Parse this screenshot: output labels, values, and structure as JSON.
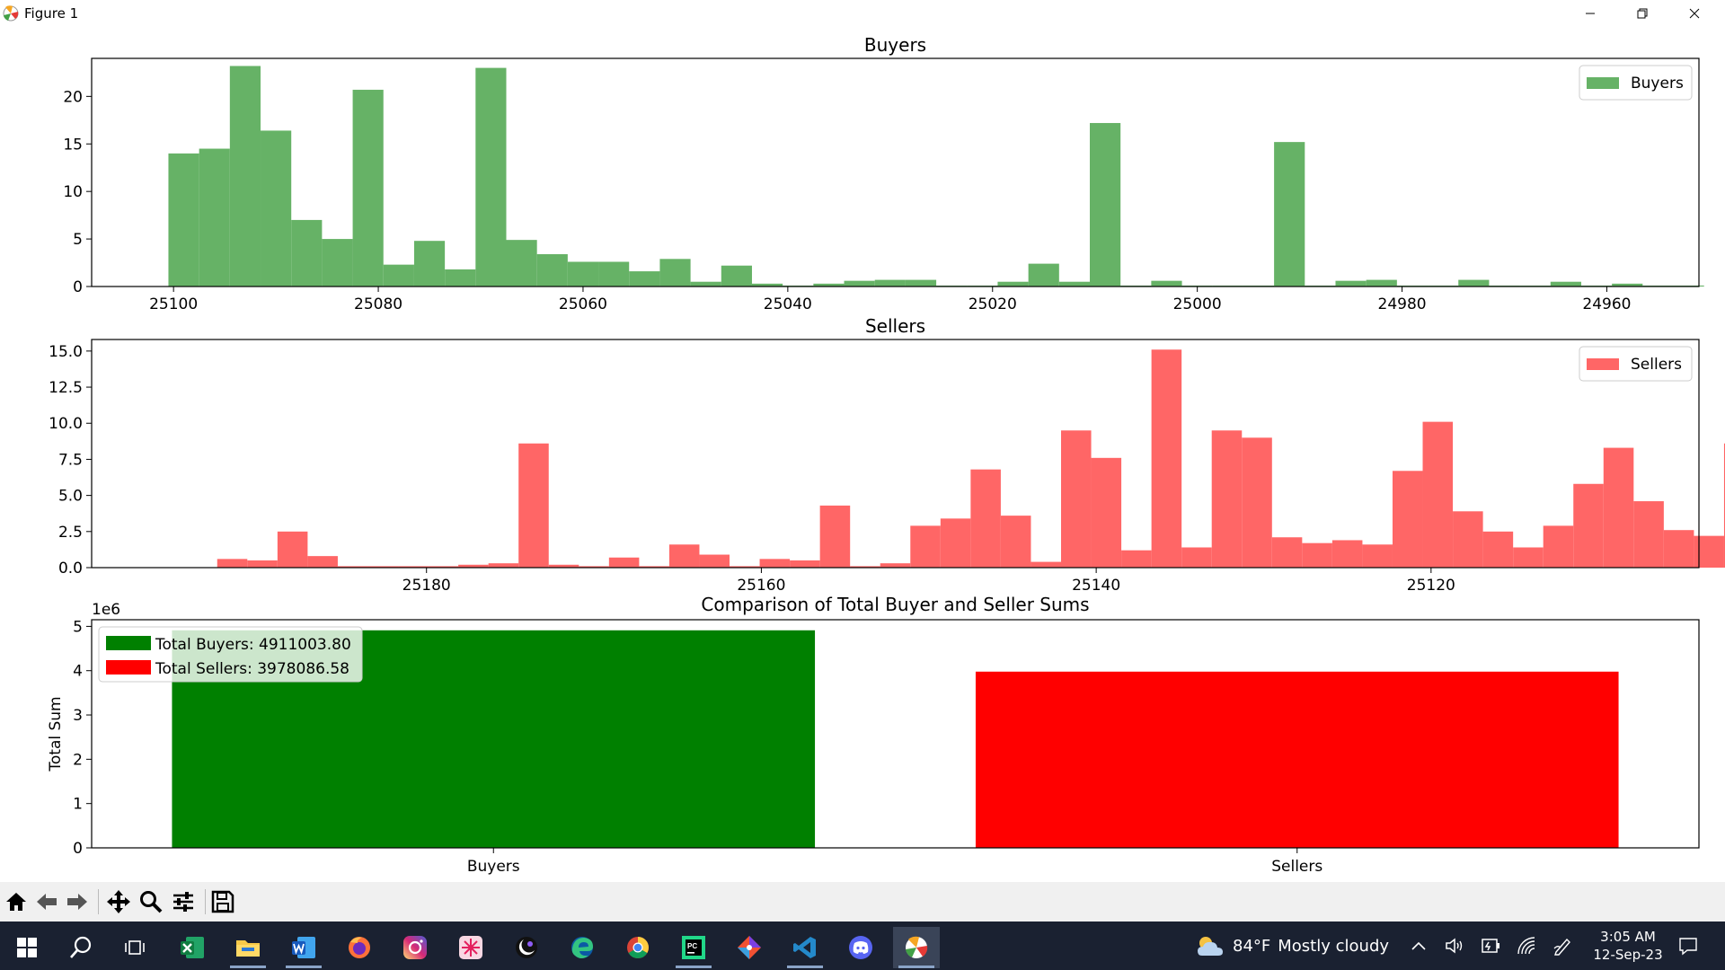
{
  "window": {
    "title": "Figure 1"
  },
  "colors": {
    "buyers": "#66b266",
    "sellers": "#ff6666",
    "buyers_total": "#008000",
    "sellers_total": "#ff0000"
  },
  "chart_data": [
    {
      "type": "bar",
      "title": "Buyers",
      "legend": "Buyers",
      "legend_placement": "top-right",
      "xlim": [
        25108,
        24951
      ],
      "ylim": [
        0,
        24
      ],
      "yticks": [
        0,
        5,
        10,
        15,
        20
      ],
      "xticks": [
        25100,
        25080,
        25060,
        25040,
        25020,
        25000,
        24980,
        24960
      ],
      "bin_start": 25100.5,
      "bin_width": 3.0,
      "values": [
        14.0,
        14.5,
        23.2,
        16.4,
        7.0,
        5.0,
        20.7,
        2.3,
        4.8,
        1.8,
        23.0,
        4.9,
        3.4,
        2.6,
        2.6,
        1.6,
        2.9,
        0.5,
        2.2,
        0.3,
        0.1,
        0.3,
        0.6,
        0.7,
        0.7,
        0.1,
        0.1,
        0.5,
        2.4,
        0.5,
        17.2,
        0.1,
        0.6,
        0.1,
        0.1,
        0.1,
        15.2,
        0.1,
        0.6,
        0.7,
        0.1,
        0.1,
        0.7,
        0.1,
        0.1,
        0.5,
        0.1,
        0.3,
        0.1,
        0.1
      ]
    },
    {
      "type": "bar",
      "title": "Sellers",
      "legend": "Sellers",
      "legend_placement": "top-right",
      "xlim": [
        25200,
        25104
      ],
      "ylim": [
        0,
        15.8
      ],
      "yticks": [
        "0.0",
        "2.5",
        "5.0",
        "7.5",
        "10.0",
        "12.5",
        "15.0"
      ],
      "xticks": [
        25180,
        25160,
        25140,
        25120
      ],
      "bin_start": 25192.5,
      "bin_width": 1.8,
      "values": [
        0.6,
        0.5,
        2.5,
        0.8,
        0.1,
        0.1,
        0.1,
        0.1,
        0.2,
        0.3,
        8.6,
        0.2,
        0.1,
        0.7,
        0.1,
        1.6,
        0.9,
        0.1,
        0.6,
        0.5,
        4.3,
        0.1,
        0.3,
        2.9,
        3.4,
        6.8,
        3.6,
        0.4,
        9.5,
        7.6,
        1.2,
        15.1,
        1.4,
        9.5,
        9.0,
        2.1,
        1.7,
        1.9,
        1.6,
        6.7,
        10.1,
        3.9,
        2.5,
        1.4,
        2.9,
        5.8,
        8.3,
        4.6,
        2.6,
        2.2,
        8.6
      ]
    },
    {
      "type": "bar",
      "title": "Comparison of Total Buyer and Seller Sums",
      "ylabel": "Total Sum",
      "offset_label": "1e6",
      "categories": [
        "Buyers",
        "Sellers"
      ],
      "values": [
        4911003.8,
        3978086.58
      ],
      "ylim": [
        0,
        5150000
      ],
      "yticks": [
        0,
        1,
        2,
        3,
        4,
        5
      ],
      "legend_placement": "top-left",
      "legend": [
        "Total Buyers: 4911003.80",
        "Total Sellers: 3978086.58"
      ]
    }
  ],
  "toolbar": {
    "buttons": [
      "home",
      "back",
      "forward",
      "pan",
      "zoom",
      "configure",
      "save"
    ]
  },
  "taskbar": {
    "apps": [
      "start",
      "search",
      "task-view",
      "excel",
      "file-explorer",
      "word",
      "firefox",
      "instagram",
      "petal-app",
      "moon-app",
      "edge",
      "chrome",
      "pycharm",
      "git-app",
      "vscode",
      "discord",
      "matplotlib-figure"
    ],
    "weather_temp": "84°F",
    "weather_desc": "Mostly cloudy",
    "time": "3:05 AM",
    "date": "12-Sep-23"
  }
}
